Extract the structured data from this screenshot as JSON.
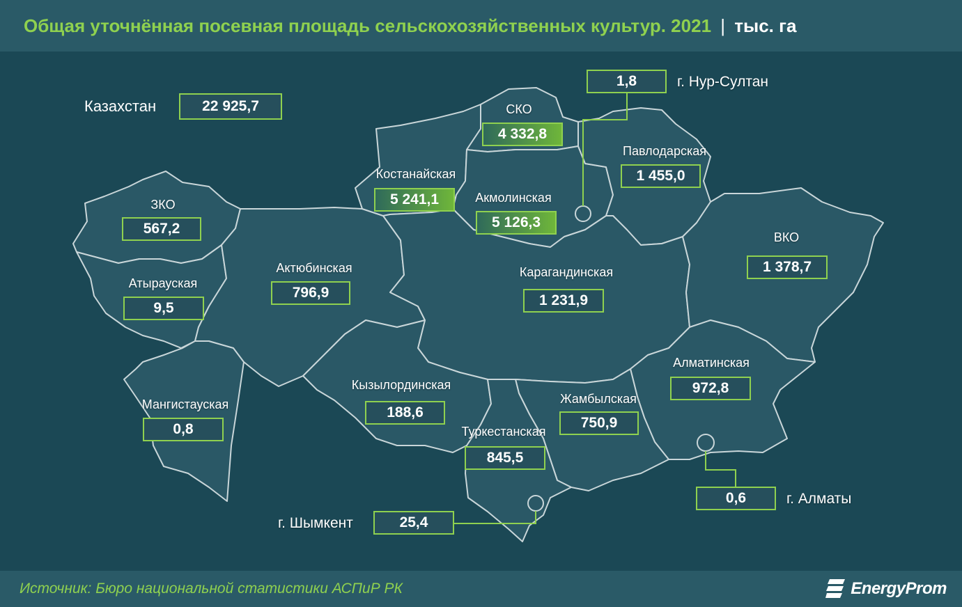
{
  "header": {
    "title": "Общая уточнённая посевная площадь сельскохозяйственных культур. 2021",
    "separator": "|",
    "unit": "тыс. га"
  },
  "country": {
    "label": "Казахстан",
    "value": "22 925,7"
  },
  "regions": {
    "zko": {
      "name": "ЗКО",
      "value": "567,2"
    },
    "atyrau": {
      "name": "Атырауская",
      "value": "9,5"
    },
    "mangystau": {
      "name": "Мангистауская",
      "value": "0,8"
    },
    "aktobe": {
      "name": "Актюбинская",
      "value": "796,9"
    },
    "kostanay": {
      "name": "Костанайская",
      "value": "5 241,1"
    },
    "sko": {
      "name": "СКО",
      "value": "4 332,8"
    },
    "akmola": {
      "name": "Акмолинская",
      "value": "5 126,3"
    },
    "pavlodar": {
      "name": "Павлодарская",
      "value": "1 455,0"
    },
    "karaganda": {
      "name": "Карагандинская",
      "value": "1 231,9"
    },
    "vko": {
      "name": "ВКО",
      "value": "1 378,7"
    },
    "kyzylorda": {
      "name": "Кызылординская",
      "value": "188,6"
    },
    "turkestan": {
      "name": "Туркестанская",
      "value": "845,5"
    },
    "zhambyl": {
      "name": "Жамбылская",
      "value": "750,9"
    },
    "almaty_region": {
      "name": "Алматинская",
      "value": "972,8"
    }
  },
  "cities": {
    "nursultan": {
      "name": "г. Нур-Султан",
      "value": "1,8"
    },
    "almaty": {
      "name": "г. Алматы",
      "value": "0,6"
    },
    "shymkent": {
      "name": "г. Шымкент",
      "value": "25,4"
    }
  },
  "colors": {
    "background": "#1b4855",
    "region_fill": "#2a5866",
    "border": "#c9d6d9",
    "accent": "#8fd14f",
    "highlight_gradient": [
      "#2f6a5a",
      "#6fb63a"
    ]
  },
  "footer": {
    "source": "Источник: Бюро национальной статистики АСПиР РК",
    "brand": "EnergyProm",
    "brand_icon": "energyprom-logo-icon"
  }
}
